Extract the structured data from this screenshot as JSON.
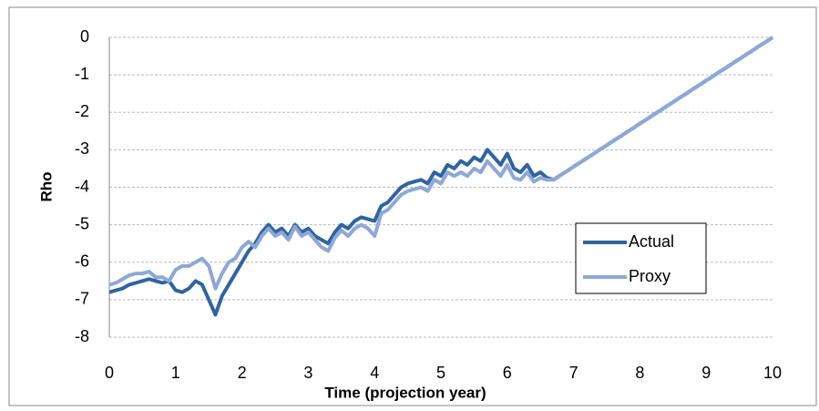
{
  "chart_data": {
    "type": "line",
    "x_label": "Time (projection year)",
    "y_label": "Rho",
    "x": [
      0,
      0.1,
      0.2,
      0.3,
      0.4,
      0.5,
      0.6,
      0.7,
      0.8,
      0.9,
      1,
      1.1,
      1.2,
      1.3,
      1.4,
      1.5,
      1.6,
      1.7,
      1.8,
      1.9,
      2,
      2.1,
      2.2,
      2.3,
      2.4,
      2.5,
      2.6,
      2.7,
      2.8,
      2.9,
      3,
      3.1,
      3.2,
      3.3,
      3.4,
      3.5,
      3.6,
      3.7,
      3.8,
      3.9,
      4,
      4.1,
      4.2,
      4.3,
      4.4,
      4.5,
      4.6,
      4.7,
      4.8,
      4.9,
      5,
      5.1,
      5.2,
      5.3,
      5.4,
      5.5,
      5.6,
      5.7,
      5.8,
      5.9,
      6,
      6.1,
      6.2,
      6.3,
      6.4,
      6.5,
      6.6,
      6.7,
      6.8,
      6.9,
      7,
      7.1,
      7.2,
      7.3,
      7.4,
      7.5,
      7.6,
      7.7,
      7.8,
      7.9,
      8,
      8.1,
      8.2,
      8.3,
      8.4,
      8.5,
      8.6,
      8.7,
      8.8,
      8.9,
      9,
      9.1,
      9.2,
      9.3,
      9.4,
      9.5,
      9.6,
      9.7,
      9.8,
      9.9,
      10
    ],
    "series": [
      {
        "name": "Actual",
        "color": "#2f64a0",
        "values": [
          -6.8,
          -6.75,
          -6.7,
          -6.6,
          -6.55,
          -6.5,
          -6.45,
          -6.5,
          -6.55,
          -6.5,
          -6.75,
          -6.8,
          -6.7,
          -6.5,
          -6.6,
          -7.0,
          -7.4,
          -6.9,
          -6.6,
          -6.3,
          -6.0,
          -5.7,
          -5.5,
          -5.2,
          -5.0,
          -5.2,
          -5.1,
          -5.3,
          -5.0,
          -5.2,
          -5.1,
          -5.3,
          -5.4,
          -5.5,
          -5.2,
          -5.0,
          -5.1,
          -4.9,
          -4.8,
          -4.85,
          -4.9,
          -4.5,
          -4.4,
          -4.2,
          -4.0,
          -3.9,
          -3.85,
          -3.8,
          -3.9,
          -3.6,
          -3.7,
          -3.4,
          -3.5,
          -3.3,
          -3.4,
          -3.2,
          -3.3,
          -3.0,
          -3.2,
          -3.4,
          -3.1,
          -3.5,
          -3.6,
          -3.4,
          -3.7,
          -3.6,
          -3.75,
          -3.8,
          -3.68,
          -3.57,
          -3.45,
          -3.34,
          -3.22,
          -3.11,
          -2.99,
          -2.88,
          -2.76,
          -2.65,
          -2.53,
          -2.42,
          -2.3,
          -2.19,
          -2.07,
          -1.96,
          -1.84,
          -1.73,
          -1.61,
          -1.5,
          -1.38,
          -1.27,
          -1.15,
          -1.04,
          -0.92,
          -0.81,
          -0.69,
          -0.58,
          -0.46,
          -0.35,
          -0.23,
          -0.12,
          0
        ]
      },
      {
        "name": "Proxy",
        "color": "#8ea8d6",
        "values": [
          -6.6,
          -6.55,
          -6.45,
          -6.35,
          -6.3,
          -6.3,
          -6.25,
          -6.4,
          -6.4,
          -6.5,
          -6.2,
          -6.1,
          -6.1,
          -6.0,
          -5.9,
          -6.1,
          -6.7,
          -6.3,
          -6.0,
          -5.9,
          -5.6,
          -5.45,
          -5.6,
          -5.3,
          -5.1,
          -5.3,
          -5.2,
          -5.4,
          -5.05,
          -5.3,
          -5.2,
          -5.4,
          -5.6,
          -5.7,
          -5.35,
          -5.15,
          -5.3,
          -5.1,
          -5.0,
          -5.1,
          -5.3,
          -4.7,
          -4.6,
          -4.4,
          -4.2,
          -4.1,
          -4.05,
          -4.0,
          -4.1,
          -3.8,
          -3.9,
          -3.6,
          -3.7,
          -3.6,
          -3.7,
          -3.5,
          -3.6,
          -3.3,
          -3.5,
          -3.7,
          -3.4,
          -3.75,
          -3.8,
          -3.6,
          -3.85,
          -3.75,
          -3.8,
          -3.8,
          -3.68,
          -3.57,
          -3.45,
          -3.34,
          -3.22,
          -3.11,
          -2.99,
          -2.88,
          -2.76,
          -2.65,
          -2.53,
          -2.42,
          -2.3,
          -2.19,
          -2.07,
          -1.96,
          -1.84,
          -1.73,
          -1.61,
          -1.5,
          -1.38,
          -1.27,
          -1.15,
          -1.04,
          -0.92,
          -0.81,
          -0.69,
          -0.58,
          -0.46,
          -0.35,
          -0.23,
          -0.12,
          0
        ]
      }
    ],
    "xlim": [
      0,
      10
    ],
    "ylim": [
      -8,
      0
    ],
    "xticks": [
      0,
      1,
      2,
      3,
      4,
      5,
      6,
      7,
      8,
      9,
      10
    ],
    "yticks": [
      0,
      -1,
      -2,
      -3,
      -4,
      -5,
      -6,
      -7,
      -8
    ],
    "grid": true,
    "legend": "lower-right"
  }
}
